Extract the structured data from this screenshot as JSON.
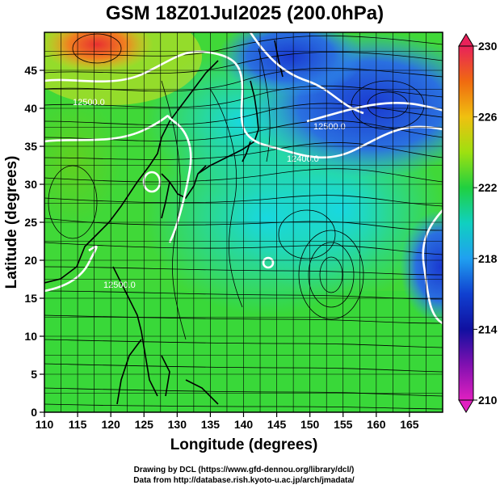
{
  "title": "GSM 18Z01Jul2025 (200.0hPa)",
  "x_axis": {
    "label": "Longitude (degrees)",
    "ticks": [
      "110",
      "115",
      "120",
      "125",
      "130",
      "135",
      "140",
      "145",
      "150",
      "155",
      "160",
      "165"
    ]
  },
  "y_axis": {
    "label": "Latitude  (degrees)",
    "ticks": [
      "0",
      "5",
      "10",
      "15",
      "20",
      "25",
      "30",
      "35",
      "40",
      "45"
    ]
  },
  "colorbar": {
    "labels": [
      "230",
      "226",
      "222",
      "218",
      "214",
      "210"
    ],
    "colors": [
      "#e8225a",
      "#f06a10",
      "#f0c010",
      "#9ee010",
      "#20d040",
      "#10d0c0",
      "#20a0f0",
      "#1040d0",
      "#1010a0",
      "#8010b0",
      "#e020c0"
    ]
  },
  "contour_labels": [
    "12500.0",
    "12400.0",
    "12500.0",
    "12500.0"
  ],
  "credits": [
    "Drawing by DCL (https://www.gfd-dennou.org/library/dcl/)",
    "Data from http://database.rish.kyoto-u.ac.jp/arch/jmadata/"
  ],
  "chart_data": {
    "type": "heatmap",
    "title": "GSM 18Z01Jul2025 (200.0hPa)",
    "xlabel": "Longitude (degrees)",
    "ylabel": "Latitude  (degrees)",
    "xlim": [
      110,
      170
    ],
    "ylim": [
      0,
      50
    ],
    "color_range": [
      210,
      230
    ],
    "colorbar_ticks": [
      210,
      214,
      218,
      222,
      226,
      230
    ],
    "grid": true,
    "overlays": [
      "streamlines",
      "coastlines",
      "white height contours"
    ],
    "contour_values": [
      12400.0,
      12500.0
    ]
  }
}
